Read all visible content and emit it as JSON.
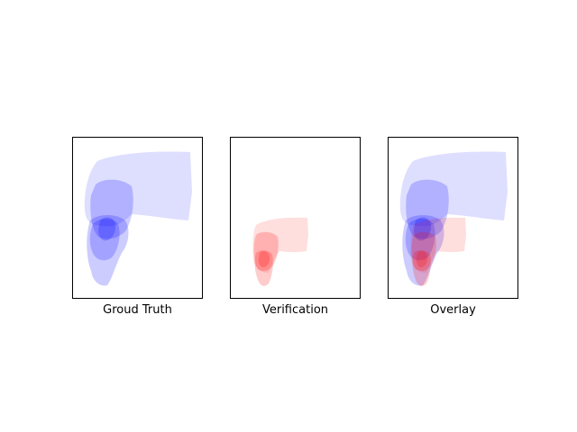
{
  "panels": [
    {
      "id": "ground-truth",
      "caption": "Groud Truth"
    },
    {
      "id": "verification",
      "caption": "Verification"
    },
    {
      "id": "overlay",
      "caption": "Overlay"
    }
  ],
  "colors": {
    "ground_truth_fill": "#0000ff",
    "verification_fill": "#ff0000",
    "frame": "#000000",
    "background": "#ffffff"
  }
}
